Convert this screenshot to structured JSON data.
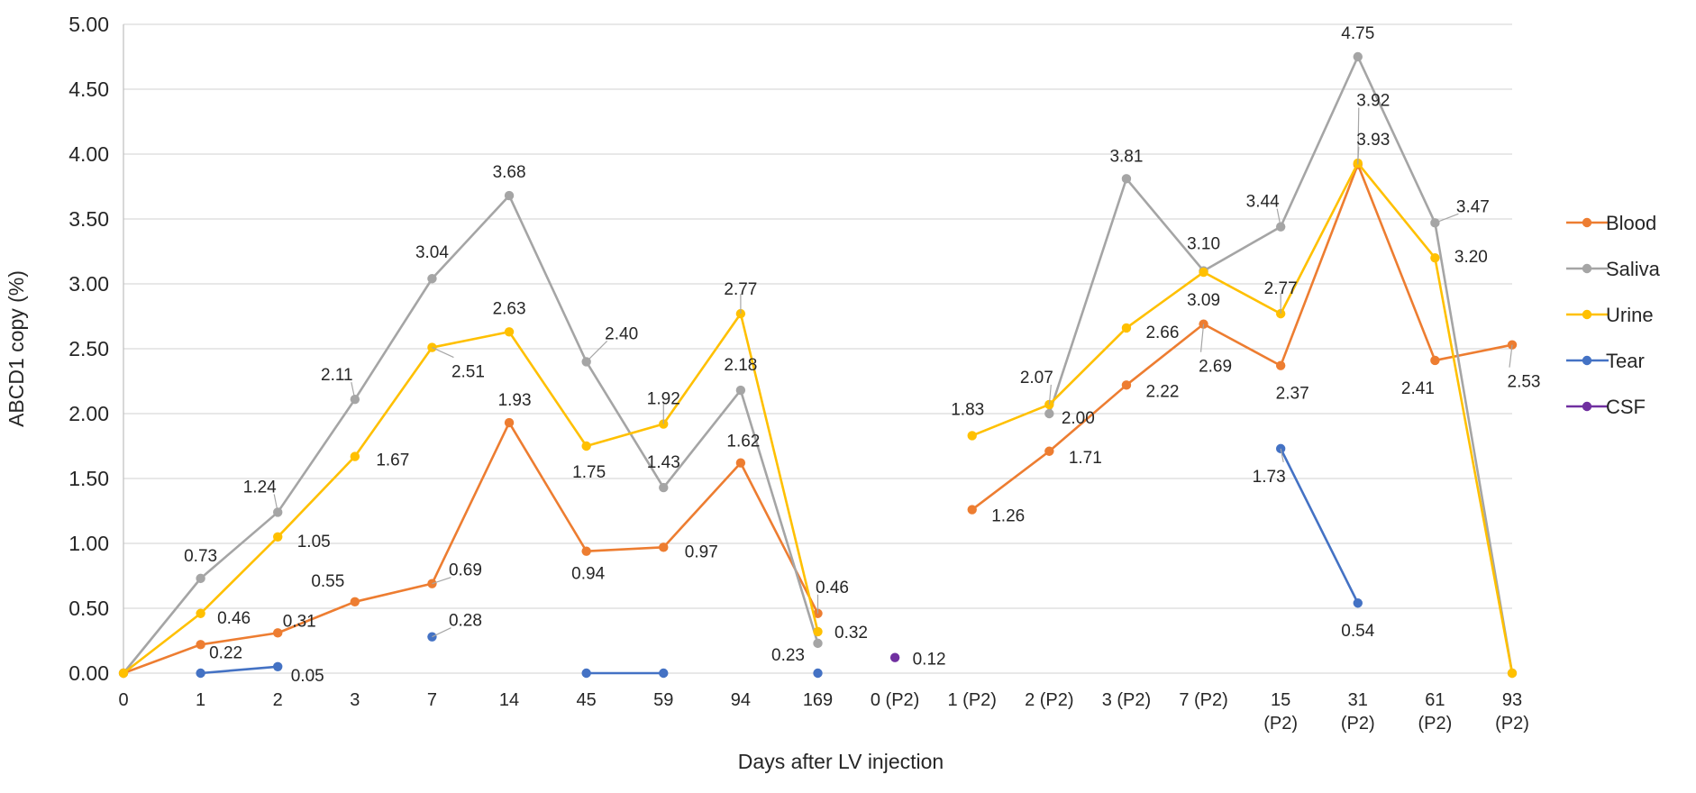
{
  "chart_data": {
    "type": "line",
    "xlabel": "Days after LV injection",
    "ylabel": "ABCD1 copy (%)",
    "ylim": [
      0,
      5
    ],
    "y_ticks": [
      "0.00",
      "0.50",
      "1.00",
      "1.50",
      "2.00",
      "2.50",
      "3.00",
      "3.50",
      "4.00",
      "4.50",
      "5.00"
    ],
    "grid": true,
    "legend_position": "right",
    "categories": [
      [
        "0"
      ],
      [
        "1"
      ],
      [
        "2"
      ],
      [
        "3"
      ],
      [
        "7"
      ],
      [
        "14"
      ],
      [
        "45"
      ],
      [
        "59"
      ],
      [
        "94"
      ],
      [
        "169"
      ],
      [
        "0 (P2)"
      ],
      [
        "1 (P2)"
      ],
      [
        "2 (P2)"
      ],
      [
        "3 (P2)"
      ],
      [
        "7 (P2)"
      ],
      [
        "15",
        "(P2)"
      ],
      [
        "31",
        "(P2)"
      ],
      [
        "61",
        "(P2)"
      ],
      [
        "93",
        "(P2)"
      ]
    ],
    "series": [
      {
        "name": "Blood",
        "color": "#ED7D31",
        "values": [
          0,
          0.22,
          0.31,
          0.55,
          0.69,
          1.93,
          0.94,
          0.97,
          1.62,
          0.46,
          null,
          1.26,
          1.71,
          2.22,
          2.69,
          2.37,
          3.92,
          2.41,
          2.53
        ],
        "labels": [
          null,
          "0.22",
          "0.31",
          "0.55",
          "0.69",
          "1.93",
          "0.94",
          "0.97",
          "1.62",
          "0.46",
          null,
          "1.26",
          "1.71",
          "2.22",
          "2.69",
          "2.37",
          "3.92",
          "2.41",
          "2.53"
        ]
      },
      {
        "name": "Saliva",
        "color": "#A5A5A5",
        "values": [
          0,
          0.73,
          1.24,
          2.11,
          3.04,
          3.68,
          2.4,
          1.43,
          2.18,
          0.23,
          null,
          null,
          2.0,
          3.81,
          3.1,
          3.44,
          4.75,
          3.47,
          0
        ],
        "labels": [
          null,
          "0.73",
          "1.24",
          "2.11",
          "3.04",
          "3.68",
          "2.40",
          "1.43",
          "2.18",
          "0.23",
          null,
          null,
          "2.00",
          "3.81",
          "3.10",
          "3.44",
          "4.75",
          "3.47",
          null
        ]
      },
      {
        "name": "Urine",
        "color": "#FFC000",
        "values": [
          0,
          0.46,
          1.05,
          1.67,
          2.51,
          2.63,
          1.75,
          1.92,
          2.77,
          0.32,
          null,
          1.83,
          2.07,
          2.66,
          3.09,
          2.77,
          3.93,
          3.2,
          0
        ],
        "labels": [
          null,
          "0.46",
          "1.05",
          "1.67",
          "2.51",
          "2.63",
          "1.75",
          "1.92",
          "2.77",
          "0.32",
          null,
          "1.83",
          "2.07",
          "2.66",
          "3.09",
          "2.77",
          "3.93",
          "3.20",
          null
        ]
      },
      {
        "name": "Tear",
        "color": "#4472C4",
        "values": [
          null,
          0,
          0.05,
          null,
          0.28,
          null,
          0,
          0,
          null,
          0,
          null,
          null,
          null,
          null,
          null,
          1.73,
          0.54,
          null,
          null
        ],
        "labels": [
          null,
          null,
          "0.05",
          null,
          "0.28",
          null,
          null,
          null,
          null,
          null,
          null,
          null,
          null,
          null,
          null,
          "1.73",
          "0.54",
          null,
          null
        ]
      },
      {
        "name": "CSF",
        "color": "#7030A0",
        "values": [
          null,
          null,
          null,
          null,
          null,
          null,
          null,
          null,
          null,
          null,
          0.12,
          null,
          null,
          null,
          null,
          null,
          null,
          null,
          null
        ],
        "labels": [
          null,
          null,
          null,
          null,
          null,
          null,
          null,
          null,
          null,
          null,
          "0.12",
          null,
          null,
          null,
          null,
          null,
          null,
          null,
          null
        ]
      }
    ]
  }
}
